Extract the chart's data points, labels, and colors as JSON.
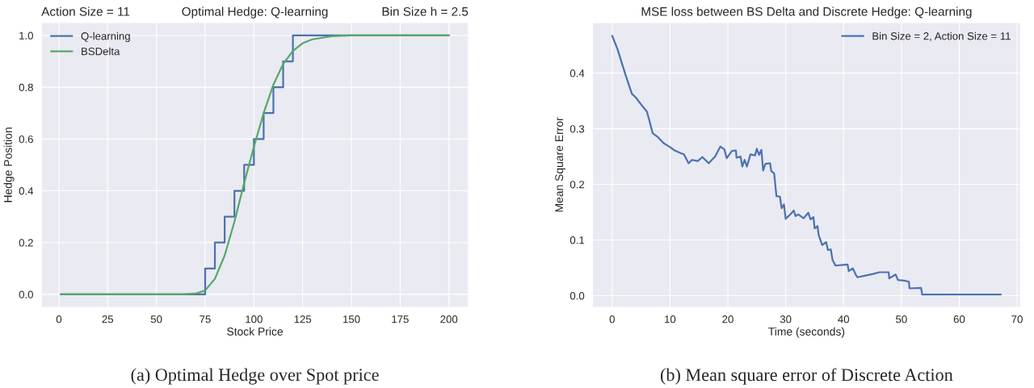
{
  "chart_data": [
    {
      "type": "step",
      "title": "Optimal Hedge: Q-learning",
      "xlabel": "Stock Price",
      "ylabel": "Hedge Position",
      "annotations": [
        "Action Size = 11",
        "Bin Size h = 2.5",
        "(a) Optimal Hedge over Spot price"
      ],
      "series": [
        {
          "name": "Q-learning",
          "color": "#4c72b0",
          "type": "step",
          "x": [
            1,
            75,
            80,
            85,
            90,
            95,
            100,
            105,
            110,
            115,
            120,
            200
          ],
          "values": [
            0,
            0.1,
            0.2,
            0.3,
            0.4,
            0.5,
            0.6,
            0.7,
            0.8,
            0.9,
            1.0,
            1.0
          ]
        },
        {
          "name": "BSDelta",
          "color": "#55a868",
          "type": "line",
          "x": [
            1,
            30,
            60,
            65,
            70,
            75,
            80,
            85,
            90,
            95,
            100,
            105,
            110,
            115,
            120,
            125,
            130,
            140,
            150,
            200
          ],
          "values": [
            0,
            0,
            0,
            0.001,
            0.003,
            0.015,
            0.06,
            0.15,
            0.28,
            0.43,
            0.57,
            0.7,
            0.81,
            0.89,
            0.94,
            0.97,
            0.985,
            0.997,
            1.0,
            1.0
          ]
        }
      ],
      "xlim": [
        -9,
        210
      ],
      "ylim": [
        -0.05,
        1.05
      ],
      "xticks": [
        0,
        25,
        50,
        75,
        100,
        125,
        150,
        175,
        200
      ],
      "yticks": [
        {
          "value": 0,
          "label": "0.0"
        },
        {
          "value": 0.2,
          "label": "0.2"
        },
        {
          "value": 0.4,
          "label": "0.4"
        },
        {
          "value": 0.6,
          "label": "0.6"
        },
        {
          "value": 0.8,
          "label": "0.8"
        },
        {
          "value": 1.0,
          "label": "1.0"
        }
      ],
      "grid": true,
      "legend": "top left"
    },
    {
      "type": "line",
      "title": "MSE loss between BS Delta and Discrete Hedge: Q-learning",
      "xlabel": "Time (seconds)",
      "ylabel": "Mean Square Error",
      "annotations": [
        "(b) Mean square error of Discrete Action"
      ],
      "series": [
        {
          "name": "Bin Size = 2, Action Size = 11",
          "color": "#4c72b0",
          "x": [
            0,
            0.9,
            2.25,
            3.4,
            4.1,
            5.2,
            6.0,
            6.4,
            7.0,
            7.9,
            8.9,
            10.0,
            10.8,
            11.9,
            12.4,
            13.2,
            13.8,
            14.8,
            15.6,
            16.7,
            17.8,
            18.7,
            19.4,
            19.8,
            20.7,
            21.4,
            21.5,
            22.2,
            22.5,
            22.9,
            23.3,
            23.9,
            24.7,
            25.0,
            25.4,
            25.8,
            26.1,
            26.5,
            27.3,
            27.5,
            28.0,
            28.4,
            29.0,
            29.3,
            29.7,
            30.0,
            30.6,
            31.4,
            31.7,
            32.2,
            33.1,
            33.9,
            34.3,
            34.8,
            35.0,
            35.5,
            35.7,
            36.3,
            37.0,
            37.3,
            37.8,
            38.1,
            38.6,
            40.7,
            40.9,
            41.6,
            42.2,
            42.4,
            43.8,
            45.1,
            46.2,
            47.8,
            47.9,
            49.0,
            49.4,
            50.5,
            51.3,
            51.4,
            53.4,
            53.6,
            67.2
          ],
          "values": [
            0.467,
            0.444,
            0.399,
            0.363,
            0.356,
            0.341,
            0.331,
            0.316,
            0.292,
            0.285,
            0.274,
            0.267,
            0.261,
            0.256,
            0.254,
            0.238,
            0.244,
            0.242,
            0.249,
            0.238,
            0.25,
            0.268,
            0.263,
            0.247,
            0.26,
            0.261,
            0.248,
            0.25,
            0.232,
            0.244,
            0.232,
            0.254,
            0.252,
            0.264,
            0.253,
            0.262,
            0.225,
            0.237,
            0.238,
            0.224,
            0.22,
            0.179,
            0.178,
            0.157,
            0.164,
            0.138,
            0.144,
            0.153,
            0.143,
            0.146,
            0.139,
            0.149,
            0.137,
            0.141,
            0.121,
            0.125,
            0.109,
            0.091,
            0.096,
            0.082,
            0.083,
            0.064,
            0.054,
            0.056,
            0.044,
            0.049,
            0.036,
            0.033,
            0.036,
            0.039,
            0.042,
            0.042,
            0.031,
            0.038,
            0.028,
            0.027,
            0.025,
            0.013,
            0.014,
            0.002,
            0.002
          ]
        }
      ],
      "xlim": [
        -3.4,
        70.6
      ],
      "ylim": [
        -0.021,
        0.491
      ],
      "xticks": [
        0,
        10,
        20,
        30,
        40,
        50,
        60,
        70
      ],
      "yticks": [
        {
          "value": 0,
          "label": "0.0"
        },
        0.1,
        0.2,
        0.3,
        0.4
      ],
      "grid": true,
      "legend": "top right"
    }
  ]
}
